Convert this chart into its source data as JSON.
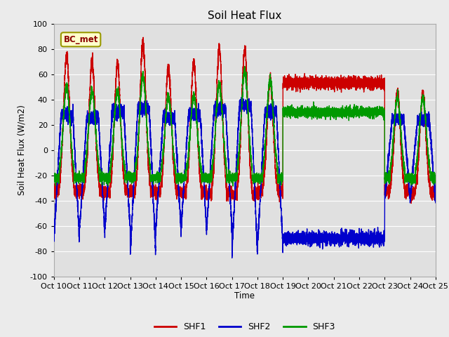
{
  "title": "Soil Heat Flux",
  "ylabel": "Soil Heat Flux (W/m2)",
  "xlabel": "Time",
  "ylim": [
    -100,
    100
  ],
  "xlim": [
    0,
    360
  ],
  "fig_facecolor": "#ebebeb",
  "ax_facecolor": "#e0e0e0",
  "shf1_color": "#cc0000",
  "shf2_color": "#0000cc",
  "shf3_color": "#009900",
  "legend_labels": [
    "SHF1",
    "SHF2",
    "SHF3"
  ],
  "bc_met_label": "BC_met",
  "xtick_positions": [
    0,
    24,
    48,
    72,
    96,
    120,
    144,
    168,
    192,
    216,
    240,
    264,
    288,
    312,
    336,
    360
  ],
  "xtick_labels": [
    "Oct 10",
    "Oct 11",
    "Oct 12",
    "Oct 13",
    "Oct 14",
    "Oct 15",
    "Oct 16",
    "Oct 17",
    "Oct 18",
    "Oct 19",
    "Oct 20",
    "Oct 21",
    "Oct 22",
    "Oct 23",
    "Oct 24",
    "Oct 25"
  ],
  "yticks": [
    -100,
    -80,
    -60,
    -40,
    -20,
    0,
    20,
    40,
    60,
    80,
    100
  ],
  "flat_start": 216,
  "flat_end": 312,
  "shf1_flat": 53,
  "shf2_flat": -70,
  "shf3_flat": 30,
  "shf1_day_peaks": [
    75,
    70,
    68,
    85,
    65,
    70,
    80,
    80,
    55
  ],
  "shf1_night_troughs": [
    -32,
    -32,
    -33,
    -33,
    -33,
    -34,
    -35,
    -35,
    -33
  ],
  "shf2_day_plateaus": [
    28,
    26,
    30,
    32,
    25,
    28,
    32,
    35,
    30
  ],
  "shf2_night_troughs": [
    -70,
    -65,
    -65,
    -82,
    -64,
    -62,
    -65,
    -82,
    -78
  ],
  "shf3_day_peaks": [
    50,
    47,
    47,
    58,
    42,
    43,
    52,
    62,
    55
  ],
  "shf3_night_troughs": [
    -22,
    -22,
    -22,
    -22,
    -22,
    -22,
    -22,
    -22,
    -22
  ]
}
